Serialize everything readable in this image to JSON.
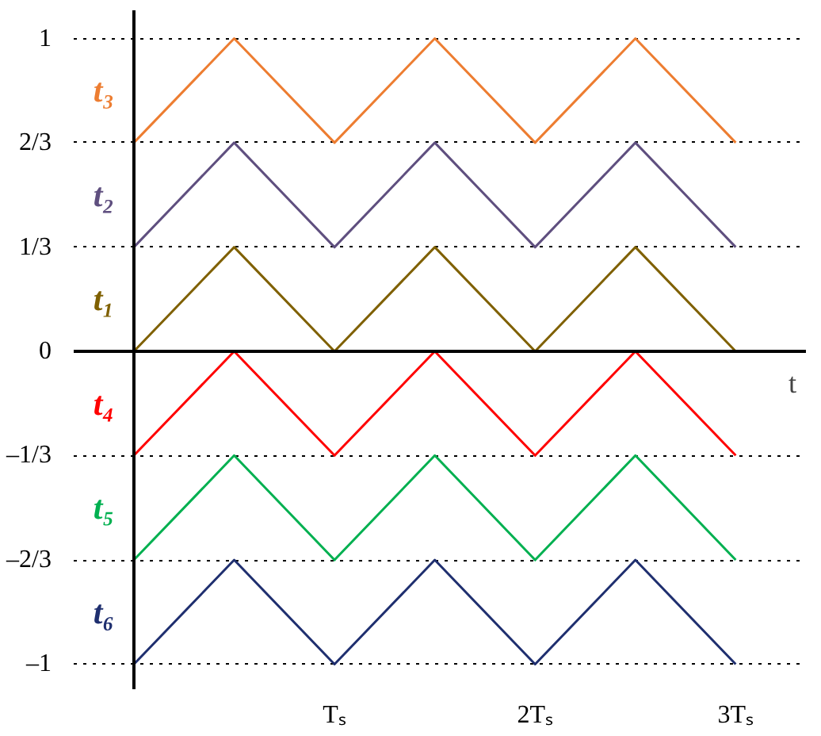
{
  "chart_data": {
    "type": "line",
    "xlabel": "t",
    "x": [
      0,
      0.5,
      1,
      1.5,
      2,
      2.5,
      3
    ],
    "series": [
      {
        "name": "t₃",
        "color": "#ed7d31",
        "values": [
          0.667,
          1,
          0.667,
          1,
          0.667,
          1,
          0.667
        ]
      },
      {
        "name": "t₂",
        "color": "#5f4f7f",
        "values": [
          0.333,
          0.667,
          0.333,
          0.667,
          0.333,
          0.667,
          0.333
        ]
      },
      {
        "name": "t₁",
        "color": "#7f6000",
        "values": [
          0,
          0.333,
          0,
          0.333,
          0,
          0.333,
          0
        ]
      },
      {
        "name": "t₄",
        "color": "#ff0000",
        "values": [
          -0.333,
          0,
          -0.333,
          0,
          -0.333,
          0,
          -0.333
        ]
      },
      {
        "name": "t₅",
        "color": "#00b050",
        "values": [
          -0.667,
          -0.333,
          -0.667,
          -0.333,
          -0.667,
          -0.333,
          -0.667
        ]
      },
      {
        "name": "t₆",
        "color": "#1f2f6f",
        "values": [
          -1,
          -0.667,
          -1,
          -0.667,
          -1,
          -0.667,
          -1
        ]
      }
    ],
    "xlim": [
      0,
      3.35
    ],
    "ylim": [
      -1.08,
      1.09
    ],
    "xticks": [
      {
        "value": 1,
        "label": "Tₛ"
      },
      {
        "value": 2,
        "label": "2Tₛ"
      },
      {
        "value": 3,
        "label": "3Tₛ"
      }
    ],
    "yticks": [
      1,
      {
        "value": 0.667,
        "label": "2/3"
      },
      {
        "value": 0.333,
        "label": "1/3"
      },
      0,
      {
        "value": -0.333,
        "label": "–1/3"
      },
      {
        "value": -0.667,
        "label": "–2/3"
      },
      {
        "value": -1,
        "label": "–1"
      }
    ],
    "grid": "y",
    "legend": false,
    "marker": "none",
    "line_style": "solid"
  }
}
